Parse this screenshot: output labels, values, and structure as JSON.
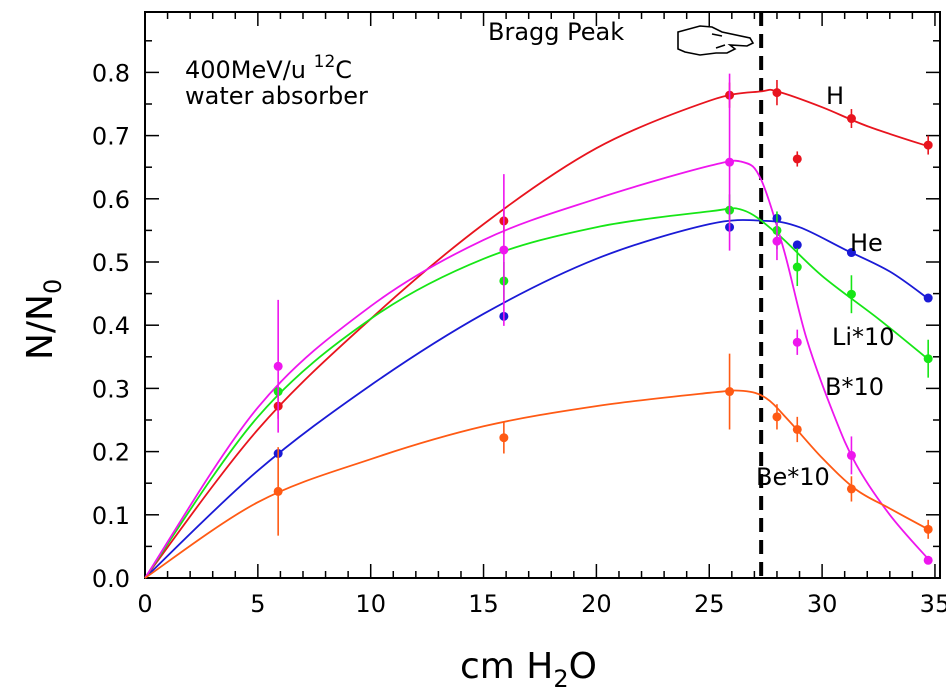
{
  "chart_data": {
    "type": "scatter",
    "xlabel": "cm H",
    "xlabel_sub": "2",
    "xlabel_tail": "O",
    "ylabel": "N/N",
    "ylabel_sub": "0",
    "xlim": [
      0,
      35.5
    ],
    "ylim": [
      0,
      0.9
    ],
    "x_ticks": [
      0,
      5,
      10,
      15,
      20,
      25,
      30,
      35
    ],
    "x_tick_labels": [
      "0",
      "5",
      "10",
      "15",
      "20",
      "25",
      "30",
      "35"
    ],
    "y_ticks": [
      0,
      0.1,
      0.2,
      0.3,
      0.4,
      0.5,
      0.6,
      0.7,
      0.8
    ],
    "y_tick_labels": [
      "0.0",
      "0.1",
      "0.2",
      "0.3",
      "0.4",
      "0.5",
      "0.6",
      "0.7",
      "0.8"
    ],
    "grid": false,
    "annotation": {
      "line1_prefix": "400MeV/u ",
      "line1_sup": "12",
      "line1_suffix": "C",
      "line2": "water absorber"
    },
    "bragg_peak": {
      "x": 27.3,
      "label": "Bragg Peak",
      "icon": "pointing-hand-icon"
    },
    "series": [
      {
        "name": "H",
        "color": "#e8141e",
        "points": [
          [
            5.9,
            0.272,
            0.02
          ],
          [
            15.9,
            0.565,
            0.02
          ],
          [
            25.9,
            0.764,
            0.02
          ],
          [
            28.0,
            0.768,
            0.02
          ],
          [
            28.9,
            0.663,
            0.012
          ],
          [
            31.3,
            0.727,
            0.015
          ],
          [
            34.7,
            0.685,
            0.015
          ]
        ],
        "fit": [
          [
            0,
            0
          ],
          [
            5,
            0.235
          ],
          [
            10,
            0.41
          ],
          [
            15,
            0.56
          ],
          [
            20,
            0.68
          ],
          [
            25,
            0.755
          ],
          [
            27.3,
            0.77
          ],
          [
            28,
            0.77
          ],
          [
            30,
            0.745
          ],
          [
            32,
            0.715
          ],
          [
            34.7,
            0.683
          ]
        ]
      },
      {
        "name": "He",
        "color": "#1a1ad6",
        "points": [
          [
            5.9,
            0.197,
            0.0
          ],
          [
            15.9,
            0.414,
            0.0
          ],
          [
            25.9,
            0.555,
            0.0
          ],
          [
            28.0,
            0.569,
            0.0
          ],
          [
            28.9,
            0.527,
            0.0
          ],
          [
            31.3,
            0.515,
            0.0
          ],
          [
            34.7,
            0.443,
            0.0
          ]
        ],
        "fit": [
          [
            0,
            0
          ],
          [
            5,
            0.17
          ],
          [
            10,
            0.305
          ],
          [
            15,
            0.418
          ],
          [
            20,
            0.505
          ],
          [
            25,
            0.56
          ],
          [
            27.5,
            0.565
          ],
          [
            29,
            0.555
          ],
          [
            31,
            0.52
          ],
          [
            33,
            0.485
          ],
          [
            34.7,
            0.442
          ]
        ]
      },
      {
        "name": "Li*10",
        "color": "#16e616",
        "points": [
          [
            5.9,
            0.295,
            0.0
          ],
          [
            15.9,
            0.47,
            0.03
          ],
          [
            25.9,
            0.582,
            0.025
          ],
          [
            28.0,
            0.55,
            0.03
          ],
          [
            28.9,
            0.492,
            0.03
          ],
          [
            31.3,
            0.449,
            0.03
          ],
          [
            34.7,
            0.347,
            0.03
          ]
        ],
        "fit": [
          [
            0,
            0
          ],
          [
            5,
            0.255
          ],
          [
            10,
            0.41
          ],
          [
            15,
            0.505
          ],
          [
            20,
            0.555
          ],
          [
            25,
            0.58
          ],
          [
            26.5,
            0.582
          ],
          [
            28,
            0.545
          ],
          [
            30,
            0.478
          ],
          [
            32.5,
            0.41
          ],
          [
            34.7,
            0.346
          ]
        ]
      },
      {
        "name": "B*10",
        "color": "#ee16ee",
        "points": [
          [
            5.9,
            0.335,
            0.105
          ],
          [
            15.9,
            0.519,
            0.12
          ],
          [
            25.9,
            0.658,
            0.14
          ],
          [
            28.0,
            0.533,
            0.03
          ],
          [
            28.9,
            0.373,
            0.02
          ],
          [
            31.3,
            0.194,
            0.03
          ],
          [
            34.7,
            0.028,
            0.005
          ]
        ],
        "fit": [
          [
            0,
            0
          ],
          [
            5,
            0.27
          ],
          [
            10,
            0.43
          ],
          [
            15,
            0.535
          ],
          [
            20,
            0.6
          ],
          [
            25,
            0.652
          ],
          [
            26.5,
            0.658
          ],
          [
            27.3,
            0.63
          ],
          [
            28.3,
            0.52
          ],
          [
            29.3,
            0.38
          ],
          [
            30.5,
            0.26
          ],
          [
            31.5,
            0.18
          ],
          [
            33,
            0.1
          ],
          [
            34.7,
            0.03
          ]
        ]
      },
      {
        "name": "Be*10",
        "color": "#ff5a14",
        "points": [
          [
            5.9,
            0.137,
            0.07
          ],
          [
            15.9,
            0.222,
            0.025
          ],
          [
            25.9,
            0.295,
            0.06
          ],
          [
            28.0,
            0.255,
            0.02
          ],
          [
            28.9,
            0.235,
            0.02
          ],
          [
            31.3,
            0.141,
            0.02
          ],
          [
            34.7,
            0.077,
            0.015
          ]
        ],
        "fit": [
          [
            0,
            0
          ],
          [
            5,
            0.12
          ],
          [
            10,
            0.188
          ],
          [
            15,
            0.24
          ],
          [
            20,
            0.272
          ],
          [
            25,
            0.293
          ],
          [
            26.5,
            0.296
          ],
          [
            27.5,
            0.285
          ],
          [
            28.5,
            0.25
          ],
          [
            30,
            0.19
          ],
          [
            31.5,
            0.14
          ],
          [
            33,
            0.11
          ],
          [
            34.7,
            0.077
          ]
        ]
      }
    ]
  }
}
